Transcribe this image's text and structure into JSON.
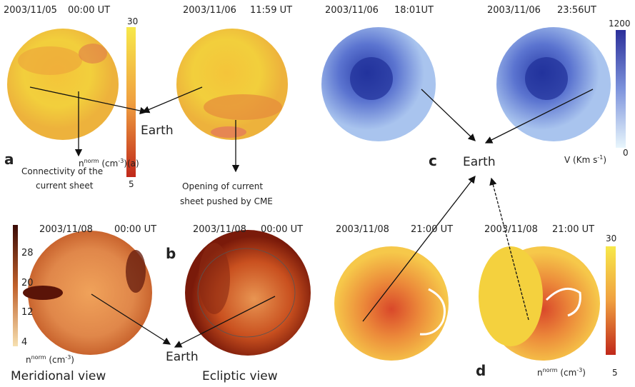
{
  "panels": {
    "a": {
      "letter": "a",
      "maps": [
        {
          "date": "2003/11/05",
          "time": "00:00 UT"
        },
        {
          "date": "2003/11/06",
          "time": "11:59 UT"
        }
      ],
      "colorbar": {
        "max": 30,
        "min": 5
      },
      "unit": {
        "symbol": "n",
        "superscript": "norm",
        "unit": " (cm",
        "exponent": "-3",
        "suffix": ")(a)"
      },
      "earth": "Earth",
      "notes": [
        [
          "Connectivity of the",
          "current sheet"
        ],
        [
          "Opening of current",
          "sheet pushed by CME"
        ]
      ]
    },
    "c": {
      "letter": "c",
      "maps": [
        {
          "date": "2003/11/06",
          "time": "18:01UT"
        },
        {
          "date": "2003/11/06",
          "time": "23:56UT"
        }
      ],
      "colorbar": {
        "max": 1200,
        "min": 0
      },
      "unit": {
        "symbol": "V (Km s",
        "exponent": "-1",
        "suffix": ")"
      },
      "earth": "Earth"
    },
    "b": {
      "letter": "b",
      "maps": [
        {
          "date": "2003/11/08",
          "time": "00:00 UT",
          "view": "Meridional view"
        },
        {
          "date": "2003/11/08",
          "time": "00:00 UT",
          "view": "Ecliptic view"
        }
      ],
      "colorbar": {
        "ticks": [
          28,
          20,
          12,
          4
        ]
      },
      "unit": {
        "symbol": "n",
        "superscript": "norm",
        "unit": " (cm",
        "exponent": "-3",
        "suffix": ")"
      },
      "earth": "Earth"
    },
    "d": {
      "letter": "d",
      "maps": [
        {
          "date": "2003/11/08",
          "time": "21:00 UT"
        },
        {
          "date": "2003/11/08",
          "time": "21:00 UT"
        }
      ],
      "colorbar": {
        "max": 30,
        "min": 5
      },
      "unit": {
        "symbol": "n",
        "superscript": "norm",
        "unit": " (cm",
        "exponent": "-3",
        "suffix": ")"
      }
    }
  }
}
